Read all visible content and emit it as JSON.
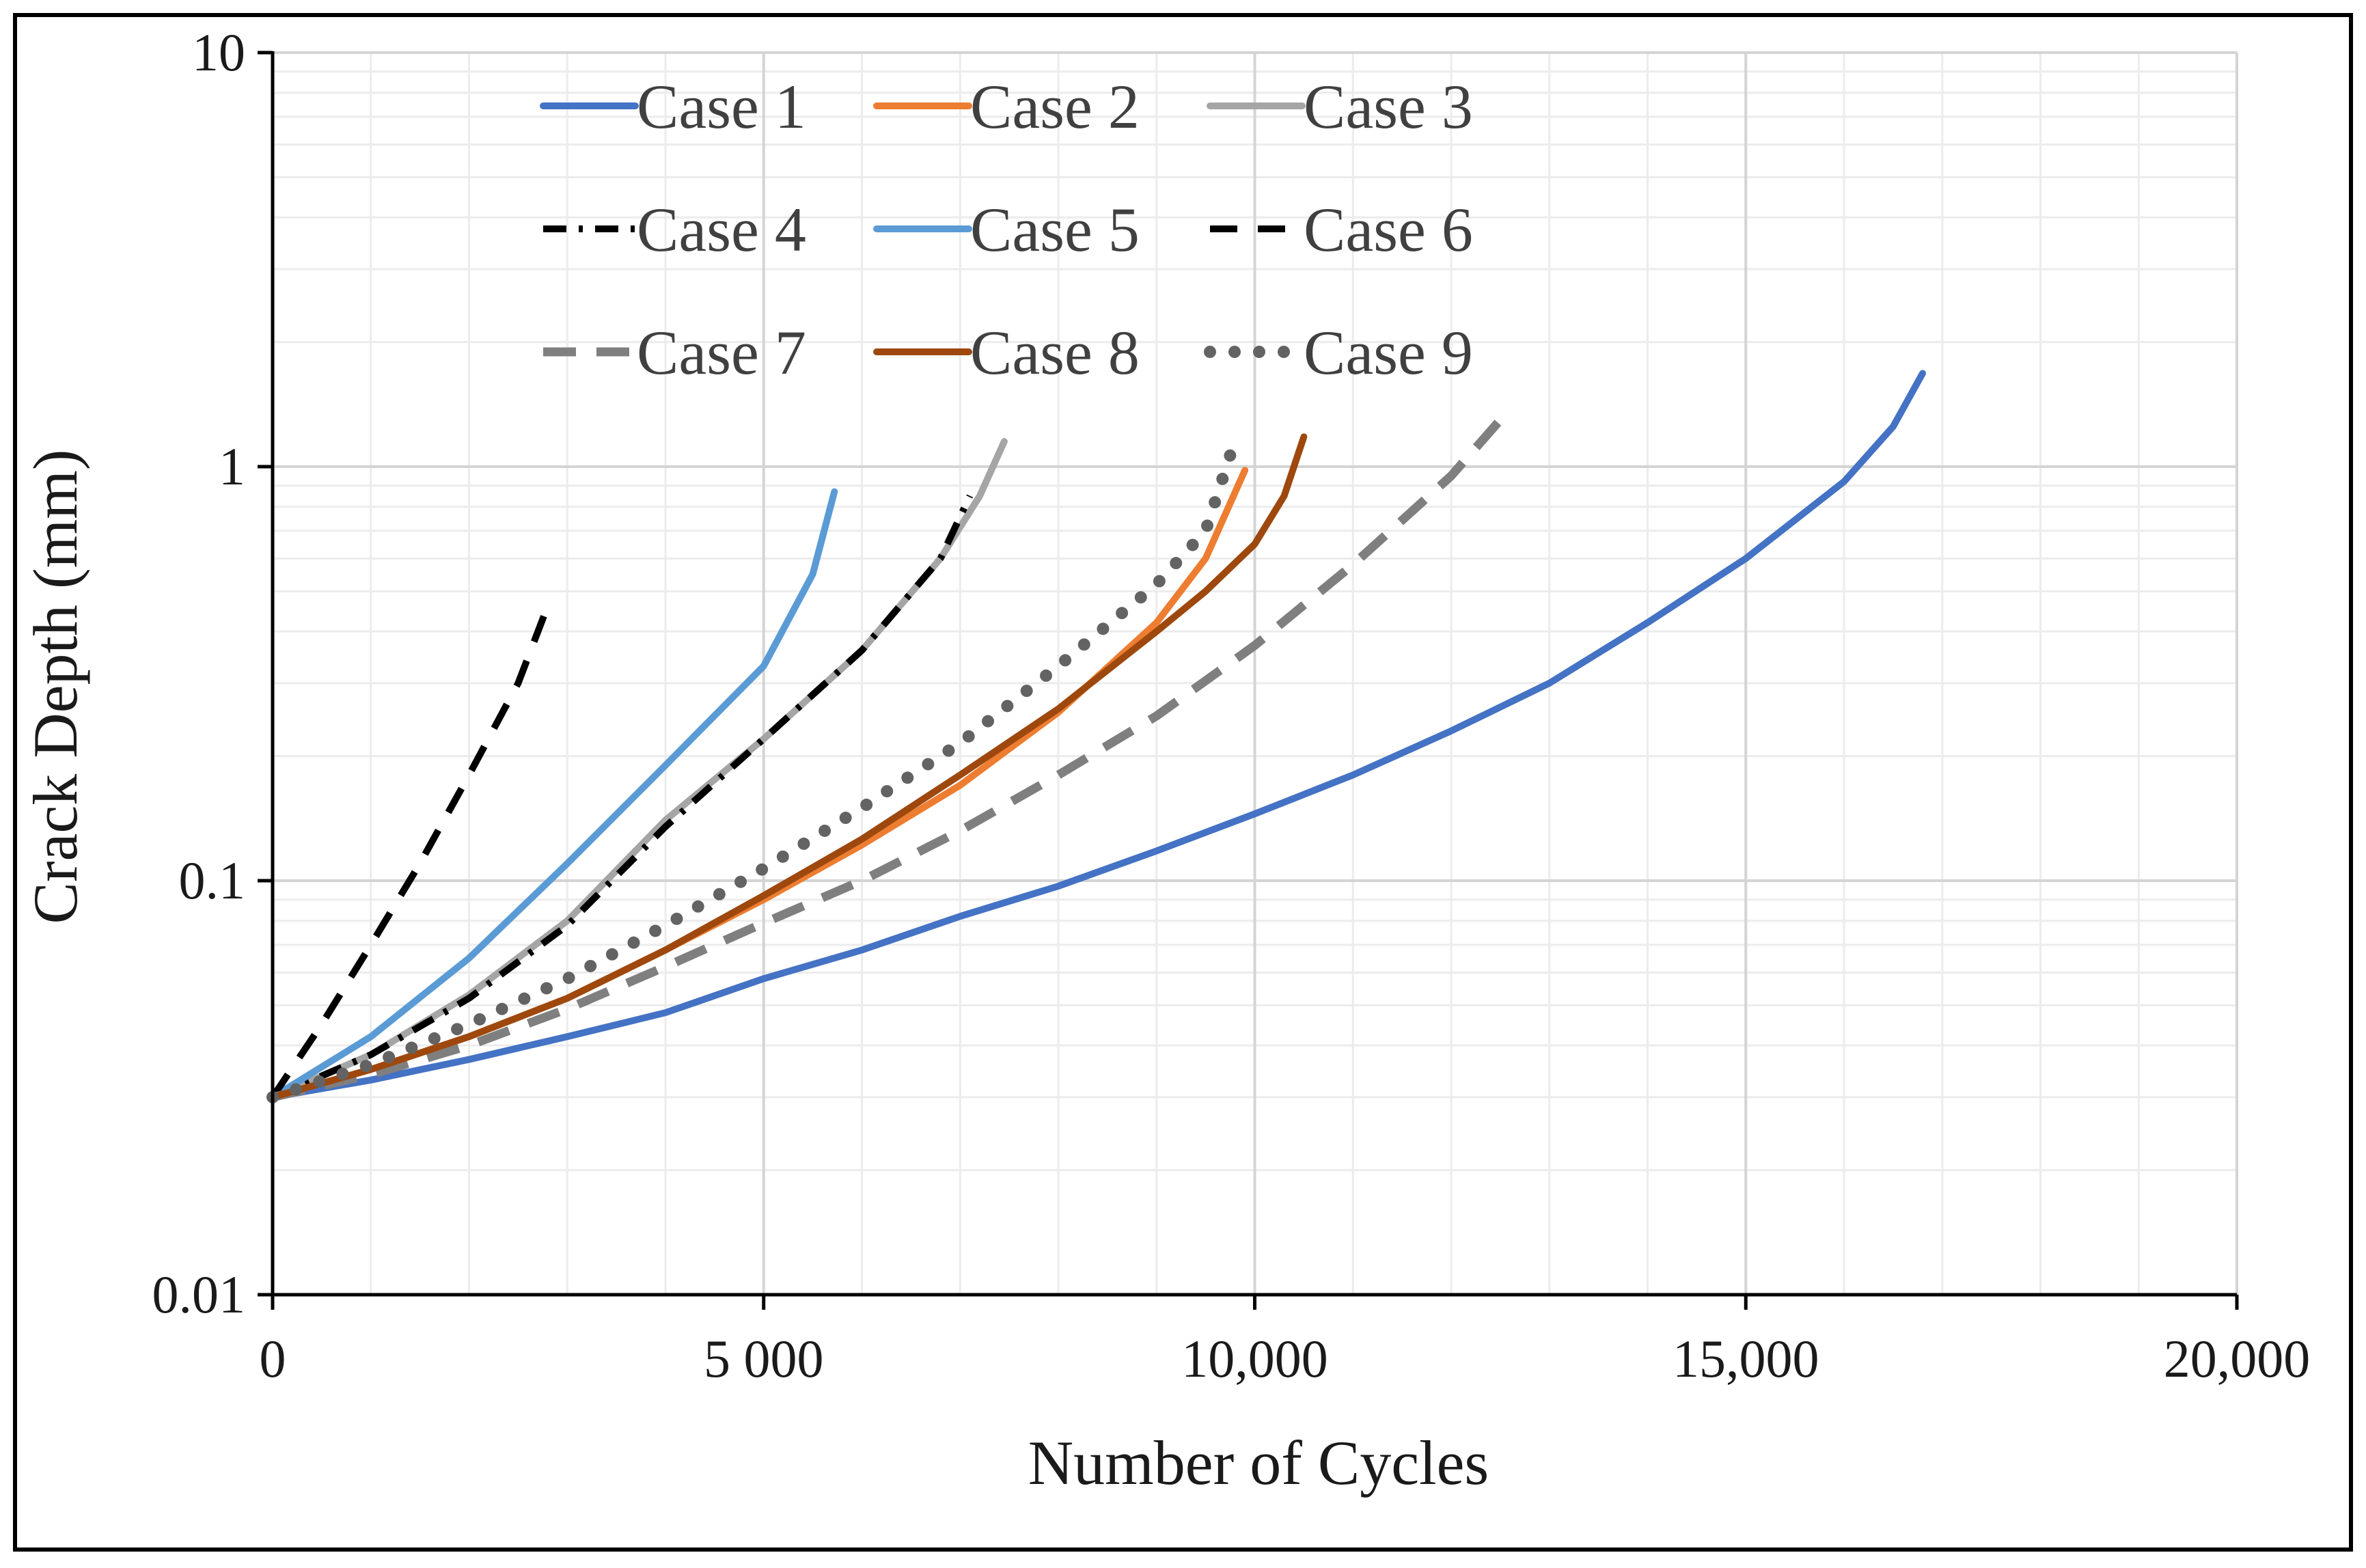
{
  "chart_data": {
    "type": "line",
    "title": "",
    "xlabel": "Number of Cycles",
    "ylabel": "Crack Depth (mm)",
    "xlim": [
      0,
      20000
    ],
    "ylim": [
      0.01,
      10
    ],
    "yscale": "log",
    "grid": true,
    "legend_position": "top-left",
    "xticks": [
      {
        "value": 0,
        "label": "0"
      },
      {
        "value": 5000,
        "label": "5 000"
      },
      {
        "value": 10000,
        "label": "10,000"
      },
      {
        "value": 15000,
        "label": "15,000"
      },
      {
        "value": 20000,
        "label": "20,000"
      }
    ],
    "yticks": [
      {
        "value": 0.01,
        "label": "0.01"
      },
      {
        "value": 0.1,
        "label": "0.1"
      },
      {
        "value": 1,
        "label": "1"
      },
      {
        "value": 10,
        "label": "10"
      }
    ],
    "series": [
      {
        "name": "Case 1",
        "color": "#4472C4",
        "dash": "solid",
        "x": [
          0,
          1000,
          2000,
          3000,
          4000,
          5000,
          6000,
          7000,
          8000,
          9000,
          10000,
          11000,
          12000,
          13000,
          14000,
          15000,
          16000,
          16500,
          16800
        ],
        "y": [
          0.03,
          0.033,
          0.037,
          0.042,
          0.048,
          0.058,
          0.068,
          0.082,
          0.097,
          0.118,
          0.145,
          0.18,
          0.23,
          0.3,
          0.42,
          0.6,
          0.92,
          1.25,
          1.68
        ]
      },
      {
        "name": "Case 2",
        "color": "#ED7D31",
        "dash": "solid",
        "x": [
          0,
          1000,
          2000,
          3000,
          4000,
          5000,
          6000,
          7000,
          8000,
          9000,
          9500,
          9900
        ],
        "y": [
          0.03,
          0.035,
          0.042,
          0.052,
          0.068,
          0.09,
          0.122,
          0.17,
          0.255,
          0.42,
          0.6,
          0.98
        ]
      },
      {
        "name": "Case 3",
        "color": "#A5A5A5",
        "dash": "solid",
        "x": [
          0,
          1000,
          2000,
          3000,
          4000,
          5000,
          6000,
          6800,
          7200,
          7450
        ],
        "y": [
          0.03,
          0.038,
          0.053,
          0.08,
          0.14,
          0.22,
          0.36,
          0.6,
          0.85,
          1.15
        ]
      },
      {
        "name": "Case 4",
        "color": "#000000",
        "dash": "dashdot",
        "x": [
          0,
          1000,
          2000,
          3000,
          4000,
          5000,
          6000,
          6800,
          7100
        ],
        "y": [
          0.03,
          0.038,
          0.052,
          0.078,
          0.135,
          0.22,
          0.36,
          0.6,
          0.85
        ]
      },
      {
        "name": "Case 5",
        "color": "#5B9BD5",
        "dash": "solid",
        "x": [
          0,
          1000,
          2000,
          3000,
          4000,
          5000,
          5500,
          5720
        ],
        "y": [
          0.03,
          0.042,
          0.065,
          0.11,
          0.19,
          0.33,
          0.55,
          0.87
        ]
      },
      {
        "name": "Case 6",
        "color": "#000000",
        "dash": "dashed",
        "x": [
          0,
          500,
          1000,
          1500,
          2000,
          2500,
          2800
        ],
        "y": [
          0.03,
          0.045,
          0.07,
          0.11,
          0.18,
          0.3,
          0.46
        ]
      },
      {
        "name": "Case 7",
        "color": "#7F7F7F",
        "dash": "dashed-thick",
        "x": [
          0,
          1000,
          2000,
          3000,
          4000,
          5000,
          6000,
          7000,
          8000,
          9000,
          10000,
          11000,
          12000,
          12600
        ],
        "y": [
          0.03,
          0.034,
          0.04,
          0.049,
          0.062,
          0.079,
          0.1,
          0.132,
          0.18,
          0.25,
          0.37,
          0.58,
          0.95,
          1.38
        ]
      },
      {
        "name": "Case 8",
        "color": "#9E480E",
        "dash": "solid",
        "x": [
          0,
          1000,
          2000,
          3000,
          4000,
          5000,
          6000,
          7000,
          8000,
          9000,
          9500,
          10000,
          10300,
          10500
        ],
        "y": [
          0.03,
          0.035,
          0.042,
          0.052,
          0.068,
          0.092,
          0.126,
          0.18,
          0.26,
          0.4,
          0.5,
          0.65,
          0.85,
          1.18
        ]
      },
      {
        "name": "Case 9",
        "color": "#636363",
        "dash": "dotted",
        "x": [
          0,
          1000,
          2000,
          3000,
          4000,
          5000,
          6000,
          7000,
          8000,
          9000,
          9500,
          9800
        ],
        "y": [
          0.03,
          0.036,
          0.045,
          0.058,
          0.078,
          0.107,
          0.15,
          0.215,
          0.33,
          0.52,
          0.7,
          1.16
        ]
      }
    ]
  }
}
